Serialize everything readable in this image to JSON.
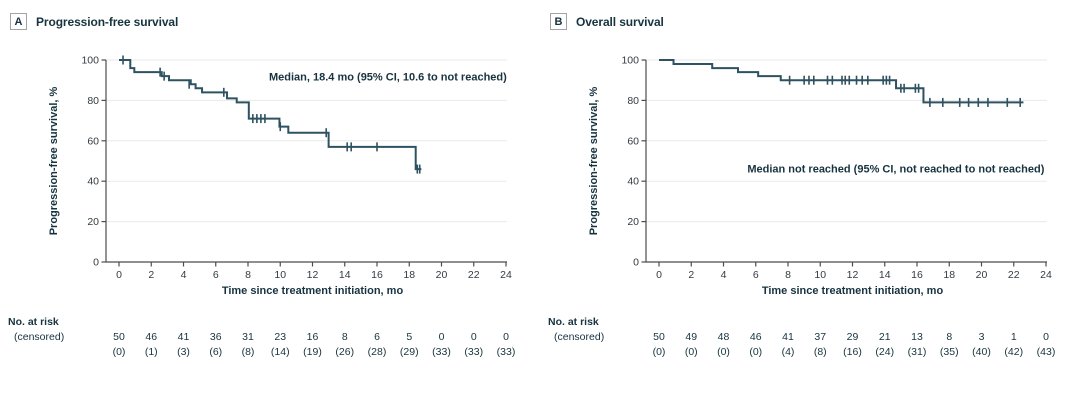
{
  "figure": {
    "type": "kaplan-meier-two-panel"
  },
  "chart_data": [
    {
      "type": "line",
      "subtype": "kaplan-meier-step",
      "panel_letter": "A",
      "title": "Progression-free survival",
      "annotation": "Median, 18.4 mo (95% CI, 10.6 to not reached)",
      "annotation_pos": {
        "x_mo": 24.05,
        "y_pct": 91.5,
        "anchor": "end"
      },
      "xlabel": "Time since treatment initiation, mo",
      "ylabel": "Progression-free survival, %",
      "xlim": [
        0,
        24
      ],
      "ylim": [
        0,
        100
      ],
      "xticks": [
        0,
        2,
        4,
        6,
        8,
        10,
        12,
        14,
        16,
        18,
        20,
        22,
        24
      ],
      "yticks": [
        0,
        20,
        40,
        60,
        80,
        100
      ],
      "grid": "horizontal-light",
      "curve_color": "#2e5261",
      "steps": [
        [
          0,
          100
        ],
        [
          0.7,
          96
        ],
        [
          0.95,
          94
        ],
        [
          2.65,
          92
        ],
        [
          3.1,
          90
        ],
        [
          4.45,
          88
        ],
        [
          4.75,
          86
        ],
        [
          5.15,
          84
        ],
        [
          6.7,
          81
        ],
        [
          7.3,
          79
        ],
        [
          8.05,
          71
        ],
        [
          9.95,
          67
        ],
        [
          10.5,
          64
        ],
        [
          13.0,
          57
        ],
        [
          18.4,
          46
        ]
      ],
      "curve_end_mo": 18.75,
      "censors": [
        [
          0.25,
          100
        ],
        [
          2.55,
          94
        ],
        [
          2.8,
          92
        ],
        [
          4.35,
          88
        ],
        [
          6.5,
          84
        ],
        [
          8.3,
          71
        ],
        [
          8.55,
          71
        ],
        [
          8.8,
          71
        ],
        [
          9.05,
          71
        ],
        [
          10.0,
          67
        ],
        [
          12.85,
          64
        ],
        [
          14.15,
          57
        ],
        [
          14.4,
          57
        ],
        [
          16.0,
          57
        ],
        [
          18.5,
          46
        ],
        [
          18.65,
          46
        ]
      ],
      "risk_label": "No. at risk",
      "censored_label": "(censored)",
      "at_risk": [
        50,
        46,
        41,
        36,
        31,
        23,
        16,
        8,
        6,
        5,
        0,
        0,
        0
      ],
      "censored_counts": [
        0,
        1,
        3,
        6,
        8,
        14,
        19,
        26,
        28,
        29,
        33,
        33,
        33
      ]
    },
    {
      "type": "line",
      "subtype": "kaplan-meier-step",
      "panel_letter": "B",
      "title": "Overall survival",
      "annotation": "Median not reached (95% CI, not reached to not reached)",
      "annotation_pos": {
        "x_mo": 23.9,
        "y_pct": 46,
        "anchor": "end"
      },
      "xlabel": "Time since treatment initiation, mo",
      "ylabel": "Progression-free survival, %",
      "xlim": [
        0,
        24
      ],
      "ylim": [
        0,
        100
      ],
      "xticks": [
        0,
        2,
        4,
        6,
        8,
        10,
        12,
        14,
        16,
        18,
        20,
        22,
        24
      ],
      "yticks": [
        0,
        20,
        40,
        60,
        80,
        100
      ],
      "grid": "horizontal-light",
      "curve_color": "#2e5261",
      "steps": [
        [
          0,
          100
        ],
        [
          0.9,
          98
        ],
        [
          3.3,
          96
        ],
        [
          4.9,
          94
        ],
        [
          6.15,
          92
        ],
        [
          7.55,
          90
        ],
        [
          14.7,
          86
        ],
        [
          16.4,
          79
        ]
      ],
      "curve_end_mo": 22.6,
      "censors": [
        [
          8.1,
          90
        ],
        [
          9.0,
          90
        ],
        [
          9.3,
          90
        ],
        [
          9.6,
          90
        ],
        [
          10.45,
          90
        ],
        [
          10.75,
          90
        ],
        [
          11.35,
          90
        ],
        [
          11.55,
          90
        ],
        [
          11.8,
          90
        ],
        [
          12.25,
          90
        ],
        [
          12.6,
          90
        ],
        [
          12.95,
          90
        ],
        [
          13.9,
          90
        ],
        [
          14.1,
          90
        ],
        [
          14.3,
          90
        ],
        [
          15.0,
          86
        ],
        [
          15.2,
          86
        ],
        [
          15.9,
          86
        ],
        [
          16.1,
          86
        ],
        [
          16.8,
          79
        ],
        [
          17.6,
          79
        ],
        [
          18.65,
          79
        ],
        [
          19.2,
          79
        ],
        [
          19.8,
          79
        ],
        [
          20.4,
          79
        ],
        [
          21.6,
          79
        ],
        [
          22.4,
          79
        ]
      ],
      "risk_label": "No. at risk",
      "censored_label": "(censored)",
      "at_risk": [
        50,
        49,
        48,
        46,
        41,
        37,
        29,
        21,
        13,
        8,
        3,
        1,
        0
      ],
      "censored_counts": [
        0,
        0,
        0,
        0,
        4,
        8,
        16,
        24,
        31,
        35,
        40,
        42,
        43
      ]
    }
  ],
  "colors": {
    "curve": "#2e5261",
    "ink": "#17333f",
    "axis": "#4c4c4c",
    "tick_text": "#333b40",
    "gridline": "#eaeaea",
    "letter_box_border": "#a3a3a3"
  }
}
